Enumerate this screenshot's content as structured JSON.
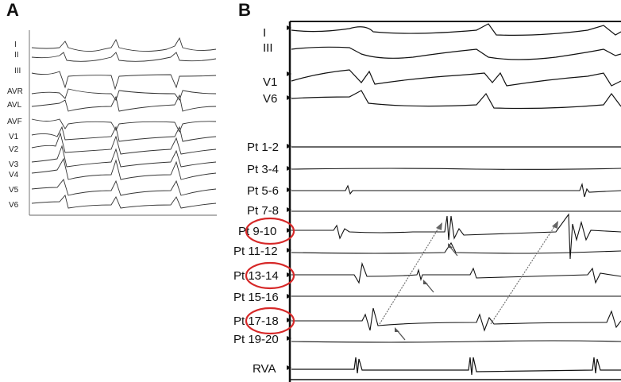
{
  "panel_a": {
    "letter": "A",
    "leads": [
      "I",
      "II",
      "III",
      "AVR",
      "AVL",
      "AVF",
      "V1",
      "V2",
      "V3",
      "V4",
      "V5",
      "V6"
    ]
  },
  "panel_b": {
    "letter": "B",
    "surface_leads": [
      "I",
      "III",
      "V1",
      "V6"
    ],
    "channels": [
      "Pt 1-2",
      "Pt 3-4",
      "Pt 5-6",
      "Pt 7-8",
      "Pt 9-10",
      "Pt 11-12",
      "Pt 13-14",
      "Pt 15-16",
      "Pt 17-18",
      "Pt 19-20",
      "RVA"
    ],
    "circled_channels": [
      "Pt 9-10",
      "Pt 13-14",
      "Pt 17-18"
    ],
    "circle_color": "#d62828"
  }
}
